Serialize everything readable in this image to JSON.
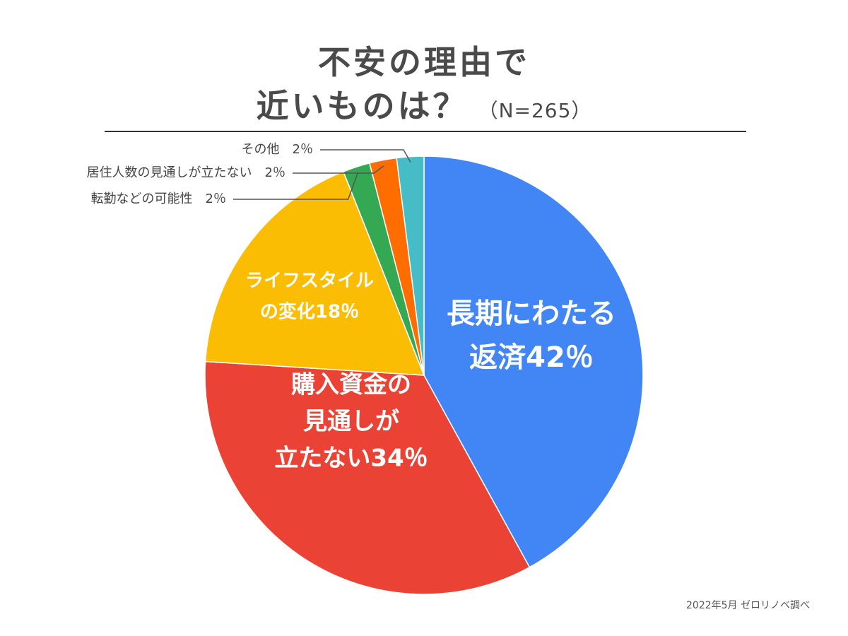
{
  "title_line1": "不安の理由で",
  "title_line2": "近いものは？",
  "sample_size": "（N=265）",
  "source": "2022年5月 ゼロリノベ調べ",
  "chart_data": {
    "type": "pie",
    "slices": [
      {
        "label_lines": [
          "長期にわたる",
          "返済42％"
        ],
        "value": 42,
        "color": "#4285f4",
        "label_inside": true
      },
      {
        "label_lines": [
          "購入資金の",
          "見通しが",
          "立たない34％"
        ],
        "value": 34,
        "color": "#ea4335",
        "label_inside": true
      },
      {
        "label_lines": [
          "ライフスタイル",
          "の変化18％"
        ],
        "value": 18,
        "color": "#fbbc04",
        "label_inside": true
      },
      {
        "label_lines": [
          "転勤などの可能性　2％"
        ],
        "value": 2,
        "color": "#34a853",
        "label_inside": false
      },
      {
        "label_lines": [
          "居住人数の見通しが立たない　2％"
        ],
        "value": 2,
        "color": "#ff6d01",
        "label_inside": false
      },
      {
        "label_lines": [
          "その他　2％"
        ],
        "value": 2,
        "color": "#46bdc6",
        "label_inside": false
      }
    ]
  }
}
